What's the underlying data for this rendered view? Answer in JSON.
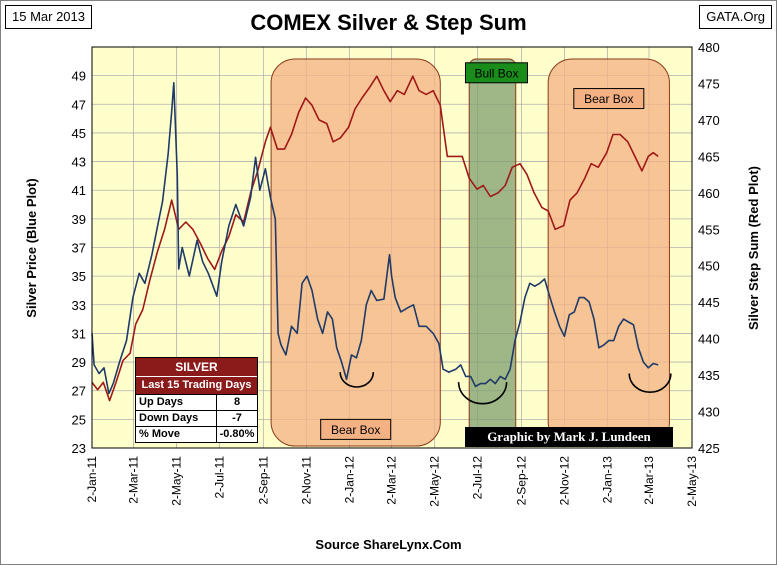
{
  "header": {
    "date": "15 Mar 2013",
    "source": "GATA.Org"
  },
  "footer": "Source ShareLynx.Com",
  "credit": "Graphic by Mark J. Lundeen",
  "stats_box": {
    "title": "SILVER",
    "subtitle": "Last 15 Trading Days",
    "rows": [
      {
        "label": "Up Days",
        "value": "8"
      },
      {
        "label": "Down Days",
        "value": "-7"
      },
      {
        "label": "% Move",
        "value": "-0.80%"
      }
    ]
  },
  "colors": {
    "plot_bg": "#ffffcc",
    "silver_line": "#1f3a68",
    "step_sum_line": "#a01818",
    "bear_box": "#f4b183",
    "bull_box": "#7f9f6f",
    "bull_label_bg": "#1a8c1a",
    "gridline": "#b0b0b0"
  },
  "chart_data": {
    "type": "line",
    "title": "COMEX Silver & Step Sum",
    "xlabel": "",
    "ylabel": "Silver Price (Blue Plot)",
    "y2label": "Silver Step Sum (Red Plot)",
    "xlim": [
      "2011-01-02",
      "2013-05-02"
    ],
    "ylim": [
      23,
      51
    ],
    "y2lim": [
      425,
      480
    ],
    "grid": true,
    "x_ticks": [
      "2-Jan-11",
      "2-Mar-11",
      "2-May-11",
      "2-Jul-11",
      "2-Sep-11",
      "2-Nov-11",
      "2-Jan-12",
      "2-Mar-12",
      "2-May-12",
      "2-Jul-12",
      "2-Sep-12",
      "2-Nov-12",
      "2-Jan-13",
      "2-Mar-13",
      "2-May-13"
    ],
    "y_ticks": [
      23,
      25,
      27,
      29,
      31,
      33,
      35,
      37,
      39,
      41,
      43,
      45,
      47,
      49
    ],
    "y2_ticks": [
      425,
      430,
      435,
      440,
      445,
      450,
      455,
      460,
      465,
      470,
      475,
      480
    ],
    "boxes": [
      {
        "label": "Bear Box",
        "kind": "bear",
        "x_start": "2011-09-13",
        "x_end": "2012-05-10",
        "label_y": 24.3
      },
      {
        "label": "Bull Box",
        "kind": "bull",
        "x_start": "2012-06-20",
        "x_end": "2012-08-25",
        "label_y": 49.2
      },
      {
        "label": "Bear Box",
        "kind": "bear",
        "x_start": "2012-10-10",
        "x_end": "2013-03-31",
        "label_y": 47.4
      }
    ],
    "arcs": [
      {
        "x_start": "2011-12-20",
        "x_end": "2012-02-05",
        "y": 28.3
      },
      {
        "x_start": "2012-06-05",
        "x_end": "2012-08-12",
        "y": 27.6
      },
      {
        "x_start": "2013-02-02",
        "x_end": "2013-04-02",
        "y": 28.2
      }
    ],
    "series": [
      {
        "name": "Silver Price",
        "axis": "left",
        "points": [
          [
            "2011-01-02",
            31.0
          ],
          [
            "2011-01-05",
            28.8
          ],
          [
            "2011-01-12",
            28.2
          ],
          [
            "2011-01-19",
            28.6
          ],
          [
            "2011-01-26",
            26.8
          ],
          [
            "2011-02-01",
            27.5
          ],
          [
            "2011-02-10",
            29.0
          ],
          [
            "2011-02-20",
            30.5
          ],
          [
            "2011-03-01",
            33.5
          ],
          [
            "2011-03-10",
            35.2
          ],
          [
            "2011-03-18",
            34.5
          ],
          [
            "2011-03-28",
            36.5
          ],
          [
            "2011-04-05",
            38.5
          ],
          [
            "2011-04-12",
            40.2
          ],
          [
            "2011-04-20",
            43.5
          ],
          [
            "2011-04-25",
            46.5
          ],
          [
            "2011-04-28",
            48.5
          ],
          [
            "2011-05-03",
            42.0
          ],
          [
            "2011-05-05",
            35.5
          ],
          [
            "2011-05-10",
            37.0
          ],
          [
            "2011-05-20",
            35.0
          ],
          [
            "2011-05-31",
            37.5
          ],
          [
            "2011-06-08",
            36.0
          ],
          [
            "2011-06-16",
            35.2
          ],
          [
            "2011-06-28",
            33.6
          ],
          [
            "2011-07-05",
            36.0
          ],
          [
            "2011-07-15",
            38.5
          ],
          [
            "2011-07-25",
            40.0
          ],
          [
            "2011-08-05",
            38.5
          ],
          [
            "2011-08-15",
            40.5
          ],
          [
            "2011-08-22",
            43.3
          ],
          [
            "2011-08-28",
            41.0
          ],
          [
            "2011-09-05",
            42.5
          ],
          [
            "2011-09-12",
            40.5
          ],
          [
            "2011-09-19",
            39.0
          ],
          [
            "2011-09-23",
            31.0
          ],
          [
            "2011-09-27",
            30.2
          ],
          [
            "2011-10-04",
            29.5
          ],
          [
            "2011-10-12",
            31.5
          ],
          [
            "2011-10-20",
            31.0
          ],
          [
            "2011-10-27",
            34.5
          ],
          [
            "2011-11-03",
            35.0
          ],
          [
            "2011-11-10",
            34.0
          ],
          [
            "2011-11-18",
            32.0
          ],
          [
            "2011-11-25",
            31.0
          ],
          [
            "2011-12-02",
            32.5
          ],
          [
            "2011-12-09",
            32.0
          ],
          [
            "2011-12-15",
            30.0
          ],
          [
            "2011-12-22",
            29.0
          ],
          [
            "2011-12-29",
            27.8
          ],
          [
            "2012-01-05",
            29.5
          ],
          [
            "2012-01-12",
            29.3
          ],
          [
            "2012-01-19",
            30.5
          ],
          [
            "2012-01-26",
            33.0
          ],
          [
            "2012-02-02",
            34.0
          ],
          [
            "2012-02-10",
            33.3
          ],
          [
            "2012-02-20",
            33.4
          ],
          [
            "2012-02-28",
            36.5
          ],
          [
            "2012-03-02",
            35.0
          ],
          [
            "2012-03-07",
            33.5
          ],
          [
            "2012-03-15",
            32.5
          ],
          [
            "2012-03-25",
            32.8
          ],
          [
            "2012-04-02",
            33.0
          ],
          [
            "2012-04-10",
            31.5
          ],
          [
            "2012-04-20",
            31.5
          ],
          [
            "2012-04-30",
            31.0
          ],
          [
            "2012-05-08",
            30.3
          ],
          [
            "2012-05-14",
            28.5
          ],
          [
            "2012-05-22",
            28.3
          ],
          [
            "2012-06-01",
            28.5
          ],
          [
            "2012-06-08",
            28.8
          ],
          [
            "2012-06-15",
            28.0
          ],
          [
            "2012-06-22",
            28.0
          ],
          [
            "2012-06-29",
            27.3
          ],
          [
            "2012-07-06",
            27.5
          ],
          [
            "2012-07-13",
            27.5
          ],
          [
            "2012-07-20",
            27.8
          ],
          [
            "2012-07-27",
            27.5
          ],
          [
            "2012-08-03",
            28.0
          ],
          [
            "2012-08-10",
            27.8
          ],
          [
            "2012-08-17",
            28.5
          ],
          [
            "2012-08-24",
            30.5
          ],
          [
            "2012-08-31",
            31.8
          ],
          [
            "2012-09-07",
            33.5
          ],
          [
            "2012-09-14",
            34.5
          ],
          [
            "2012-09-21",
            34.3
          ],
          [
            "2012-09-28",
            34.5
          ],
          [
            "2012-10-05",
            34.8
          ],
          [
            "2012-10-12",
            33.6
          ],
          [
            "2012-10-19",
            32.5
          ],
          [
            "2012-10-26",
            31.5
          ],
          [
            "2012-11-02",
            30.8
          ],
          [
            "2012-11-09",
            32.3
          ],
          [
            "2012-11-16",
            32.5
          ],
          [
            "2012-11-23",
            33.5
          ],
          [
            "2012-11-30",
            33.5
          ],
          [
            "2012-12-07",
            33.2
          ],
          [
            "2012-12-14",
            32.0
          ],
          [
            "2012-12-21",
            30.0
          ],
          [
            "2012-12-28",
            30.2
          ],
          [
            "2013-01-04",
            30.5
          ],
          [
            "2013-01-11",
            30.5
          ],
          [
            "2013-01-18",
            31.5
          ],
          [
            "2013-01-25",
            32.0
          ],
          [
            "2013-02-01",
            31.8
          ],
          [
            "2013-02-08",
            31.6
          ],
          [
            "2013-02-15",
            30.0
          ],
          [
            "2013-02-22",
            29.0
          ],
          [
            "2013-03-01",
            28.6
          ],
          [
            "2013-03-08",
            28.9
          ],
          [
            "2013-03-15",
            28.8
          ]
        ]
      },
      {
        "name": "Silver Step Sum",
        "axis": "right",
        "points": [
          [
            "2011-01-02",
            434.0
          ],
          [
            "2011-01-10",
            433.0
          ],
          [
            "2011-01-18",
            434.0
          ],
          [
            "2011-01-27",
            431.5
          ],
          [
            "2011-02-05",
            434.0
          ],
          [
            "2011-02-15",
            437.0
          ],
          [
            "2011-02-25",
            438.0
          ],
          [
            "2011-03-05",
            442.0
          ],
          [
            "2011-03-15",
            444.0
          ],
          [
            "2011-03-25",
            448.0
          ],
          [
            "2011-04-05",
            452.0
          ],
          [
            "2011-04-15",
            455.0
          ],
          [
            "2011-04-25",
            459.0
          ],
          [
            "2011-05-05",
            455.0
          ],
          [
            "2011-05-15",
            456.0
          ],
          [
            "2011-05-25",
            455.0
          ],
          [
            "2011-06-05",
            453.0
          ],
          [
            "2011-06-15",
            451.0
          ],
          [
            "2011-06-25",
            449.5
          ],
          [
            "2011-07-05",
            452.0
          ],
          [
            "2011-07-15",
            454.0
          ],
          [
            "2011-07-25",
            457.0
          ],
          [
            "2011-08-05",
            456.0
          ],
          [
            "2011-08-15",
            460.0
          ],
          [
            "2011-08-25",
            463.0
          ],
          [
            "2011-09-05",
            467.0
          ],
          [
            "2011-09-12",
            469.0
          ],
          [
            "2011-09-22",
            466.0
          ],
          [
            "2011-10-02",
            466.0
          ],
          [
            "2011-10-12",
            468.0
          ],
          [
            "2011-10-22",
            471.0
          ],
          [
            "2011-11-01",
            473.0
          ],
          [
            "2011-11-10",
            472.0
          ],
          [
            "2011-11-20",
            470.0
          ],
          [
            "2011-12-01",
            469.5
          ],
          [
            "2011-12-10",
            467.0
          ],
          [
            "2011-12-20",
            467.5
          ],
          [
            "2012-01-01",
            469.0
          ],
          [
            "2012-01-10",
            471.5
          ],
          [
            "2012-01-20",
            473.0
          ],
          [
            "2012-01-31",
            474.5
          ],
          [
            "2012-02-10",
            476.0
          ],
          [
            "2012-02-20",
            474.0
          ],
          [
            "2012-02-29",
            472.5
          ],
          [
            "2012-03-10",
            474.0
          ],
          [
            "2012-03-20",
            473.5
          ],
          [
            "2012-04-01",
            476.0
          ],
          [
            "2012-04-10",
            474.0
          ],
          [
            "2012-04-20",
            473.5
          ],
          [
            "2012-04-30",
            474.0
          ],
          [
            "2012-05-10",
            472.0
          ],
          [
            "2012-05-20",
            465.0
          ],
          [
            "2012-06-01",
            465.0
          ],
          [
            "2012-06-10",
            465.0
          ],
          [
            "2012-06-20",
            462.0
          ],
          [
            "2012-07-01",
            460.5
          ],
          [
            "2012-07-10",
            461.0
          ],
          [
            "2012-07-20",
            459.5
          ],
          [
            "2012-07-31",
            460.0
          ],
          [
            "2012-08-10",
            461.0
          ],
          [
            "2012-08-20",
            463.5
          ],
          [
            "2012-08-31",
            464.0
          ],
          [
            "2012-09-10",
            462.5
          ],
          [
            "2012-09-20",
            460.0
          ],
          [
            "2012-10-01",
            458.0
          ],
          [
            "2012-10-10",
            457.5
          ],
          [
            "2012-10-20",
            455.0
          ],
          [
            "2012-11-01",
            455.5
          ],
          [
            "2012-11-10",
            459.0
          ],
          [
            "2012-11-20",
            460.0
          ],
          [
            "2012-12-01",
            462.0
          ],
          [
            "2012-12-10",
            464.0
          ],
          [
            "2012-12-20",
            463.5
          ],
          [
            "2013-01-01",
            465.5
          ],
          [
            "2013-01-10",
            468.0
          ],
          [
            "2013-01-20",
            468.0
          ],
          [
            "2013-01-31",
            467.0
          ],
          [
            "2013-02-10",
            465.0
          ],
          [
            "2013-02-20",
            463.0
          ],
          [
            "2013-03-01",
            465.0
          ],
          [
            "2013-03-08",
            465.5
          ],
          [
            "2013-03-15",
            465.0
          ]
        ]
      }
    ]
  }
}
